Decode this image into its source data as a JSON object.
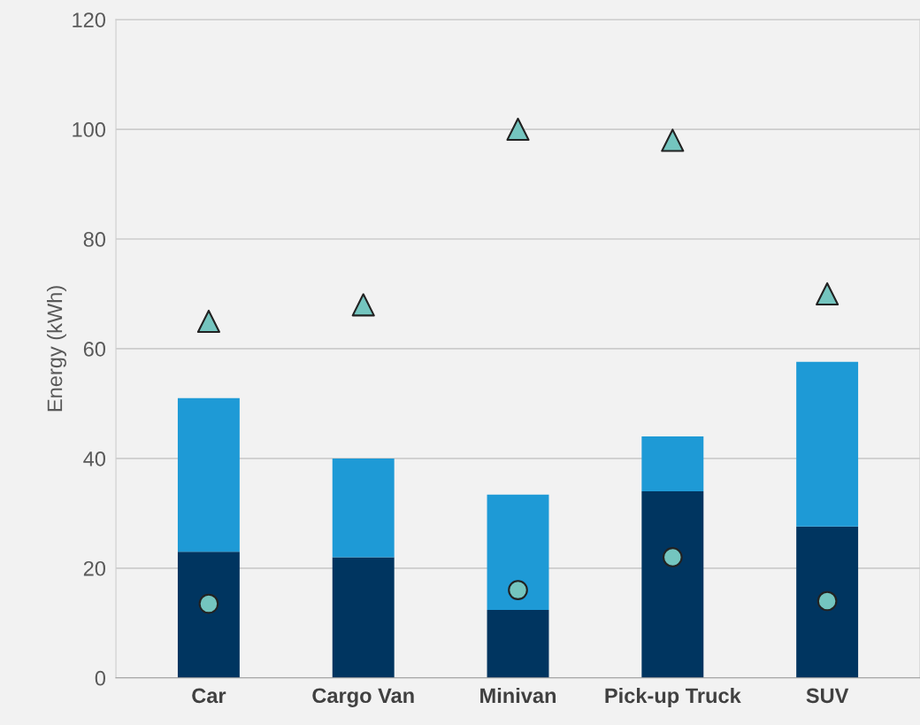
{
  "chart_data": {
    "type": "bar",
    "stacked": true,
    "ylabel": "Energy (kWh)",
    "categories": [
      "Car",
      "Cargo Van",
      "Minivan",
      "Pick-up Truck",
      "SUV"
    ],
    "series": [
      {
        "type": "bar",
        "color": "#003560",
        "values": [
          23,
          22,
          12.4,
          34,
          27.6
        ]
      },
      {
        "type": "bar",
        "color": "#1e9ad6",
        "values": [
          28,
          18,
          21,
          10,
          30
        ]
      },
      {
        "type": "scatter",
        "color": "#74c5bf",
        "marker": "circle",
        "x": [
          "Car",
          "Cargo Van",
          "Minivan",
          "Pick-up Truck",
          "SUV"
        ],
        "values": [
          13.5,
          null,
          16,
          22,
          14
        ]
      },
      {
        "type": "scatter",
        "color": "#74c5bf",
        "marker": "triangle",
        "x": [
          "Car",
          "Cargo Van",
          "Minivan",
          "Pick-up Truck",
          "SUV"
        ],
        "values": [
          65,
          68,
          100,
          98,
          70
        ]
      }
    ],
    "ylim": [
      0,
      120
    ],
    "yticks": [
      0,
      20,
      40,
      60,
      80,
      100,
      120
    ],
    "grid": "y",
    "legend": false
  }
}
